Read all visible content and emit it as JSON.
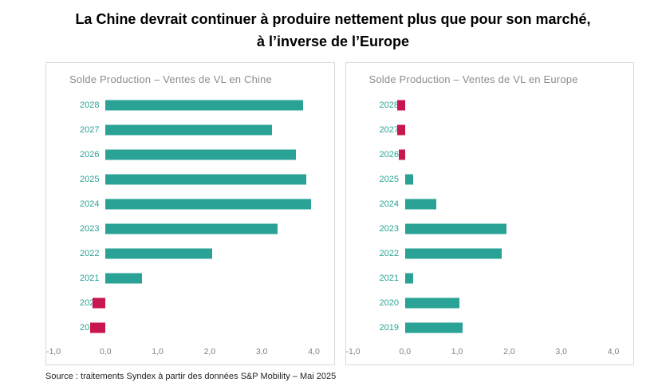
{
  "title": {
    "line1": "La Chine devrait continuer à produire nettement plus que pour son marché,",
    "line2": "à l’inverse de l’Europe"
  },
  "source": "Source : traitements Syndex à partir des données S&P Mobility – Mai  2025",
  "colors": {
    "positive": "#2aa396",
    "negative": "#c8174e",
    "year_label": "#2aa396",
    "chart_title": "#8c8c8c",
    "tick_label": "#7f7f7f",
    "panel_border": "#d9d9d9"
  },
  "chart_data": [
    {
      "type": "bar",
      "orientation": "horizontal",
      "title": "Solde Production – Ventes de VL en Chine",
      "categories": [
        "2028",
        "2027",
        "2026",
        "2025",
        "2024",
        "2023",
        "2022",
        "2021",
        "2020",
        "2019"
      ],
      "values": [
        3.8,
        3.2,
        3.65,
        3.85,
        3.95,
        3.3,
        2.05,
        0.7,
        -0.25,
        -0.3
      ],
      "xlim": [
        -1.0,
        4.0
      ],
      "xtick_labels": [
        "-1,0",
        "0,0",
        "1,0",
        "2,0",
        "3,0",
        "4,0"
      ],
      "xtick_values": [
        -1,
        0,
        1,
        2,
        3,
        4
      ],
      "grid": false,
      "legend": false
    },
    {
      "type": "bar",
      "orientation": "horizontal",
      "title": "Solde Production – Ventes de VL en Europe",
      "categories": [
        "2028",
        "2027",
        "2026",
        "2025",
        "2024",
        "2023",
        "2022",
        "2021",
        "2020",
        "2019"
      ],
      "values": [
        -0.15,
        -0.15,
        -0.12,
        0.15,
        0.6,
        1.95,
        1.85,
        0.15,
        1.05,
        1.1
      ],
      "xlim": [
        -1.0,
        4.0
      ],
      "xtick_labels": [
        "-1,0",
        "0,0",
        "1,0",
        "2,0",
        "3,0",
        "4,0"
      ],
      "xtick_values": [
        -1,
        0,
        1,
        2,
        3,
        4
      ],
      "grid": false,
      "legend": false
    }
  ]
}
